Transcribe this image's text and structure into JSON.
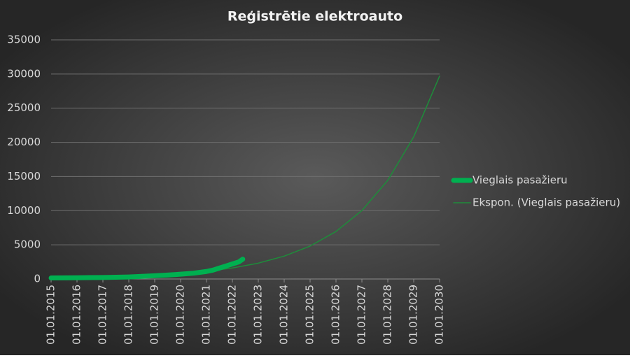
{
  "chart_data": {
    "type": "line",
    "title": "Reģistrētie elektroauto",
    "xlim": [
      2015,
      2030
    ],
    "xticks": [
      {
        "value": 2015,
        "label": "01.01.2015"
      },
      {
        "value": 2016,
        "label": "01.01.2016"
      },
      {
        "value": 2017,
        "label": "01.01.2017"
      },
      {
        "value": 2018,
        "label": "01.01.2018"
      },
      {
        "value": 2019,
        "label": "01.01.2019"
      },
      {
        "value": 2020,
        "label": "01.01.2020"
      },
      {
        "value": 2021,
        "label": "01.01.2021"
      },
      {
        "value": 2022,
        "label": "01.01.2022"
      },
      {
        "value": 2023,
        "label": "01.01.2023"
      },
      {
        "value": 2024,
        "label": "01.01.2024"
      },
      {
        "value": 2025,
        "label": "01.01.2025"
      },
      {
        "value": 2026,
        "label": "01.01.2026"
      },
      {
        "value": 2027,
        "label": "01.01.2027"
      },
      {
        "value": 2028,
        "label": "01.01.2028"
      },
      {
        "value": 2029,
        "label": "01.01.2029"
      },
      {
        "value": 2030,
        "label": "01.01.2030"
      }
    ],
    "ylim": [
      0,
      35000
    ],
    "yticks": [
      0,
      5000,
      10000,
      15000,
      20000,
      25000,
      30000,
      35000
    ],
    "grid": true,
    "legend": "right",
    "series": [
      {
        "name": "Vieglais pasažieru",
        "color": "#00b050",
        "width": 7,
        "x": [
          2015,
          2016,
          2017,
          2018,
          2018.5,
          2019,
          2019.5,
          2020,
          2020.5,
          2021,
          2021.25,
          2021.5,
          2021.75,
          2022,
          2022.25,
          2022.4
        ],
        "values": [
          150,
          180,
          220,
          300,
          380,
          480,
          580,
          700,
          850,
          1100,
          1300,
          1600,
          1900,
          2200,
          2500,
          2900
        ]
      },
      {
        "name": "Ekspon. (Vieglais pasažieru)",
        "color": "#1e8c3a",
        "width": 1.5,
        "x": [
          2015,
          2016,
          2017,
          2018,
          2019,
          2020,
          2021,
          2022,
          2023,
          2024,
          2025,
          2026,
          2027,
          2028,
          2029,
          2030
        ],
        "values": [
          125,
          180,
          259,
          373,
          538,
          775,
          1117,
          1610,
          2320,
          3345,
          4820,
          6950,
          10020,
          14440,
          20810,
          29700
        ]
      }
    ]
  }
}
